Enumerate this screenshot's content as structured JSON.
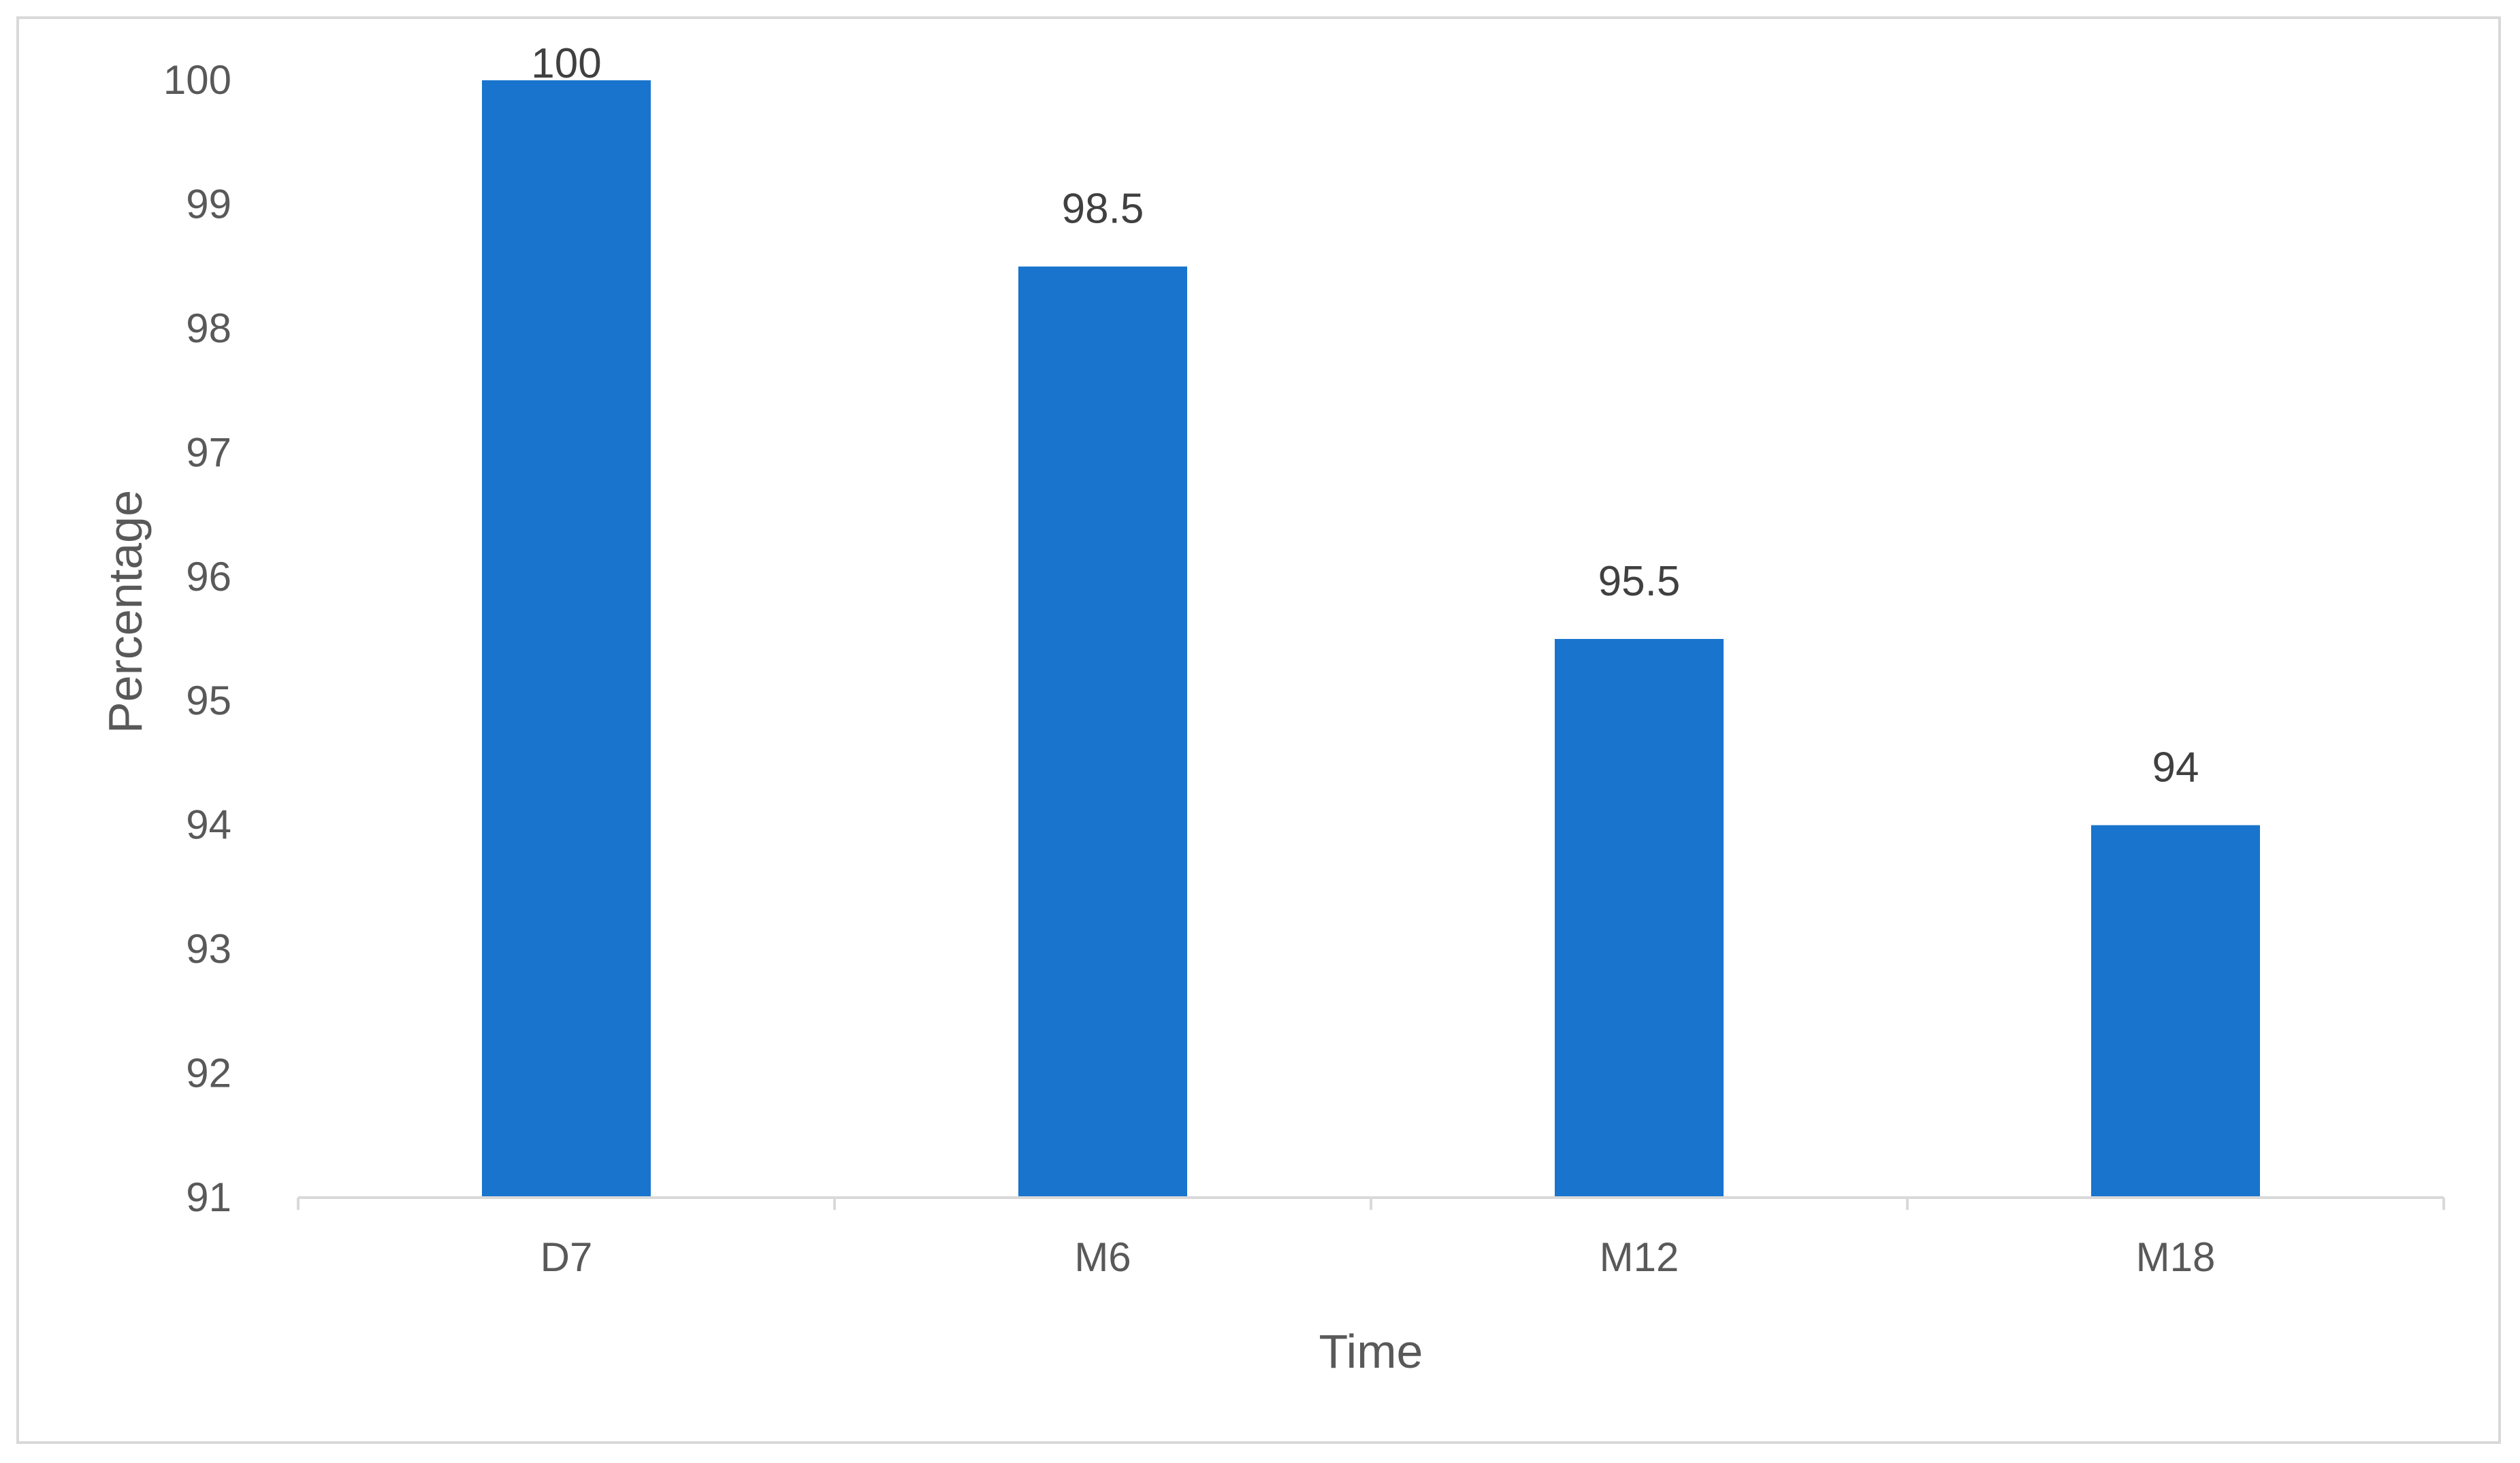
{
  "chart_data": {
    "type": "bar",
    "categories": [
      "D7",
      "M6",
      "M12",
      "M18"
    ],
    "values": [
      100,
      98.5,
      95.5,
      94
    ],
    "data_labels": [
      "100",
      "98.5",
      "95.5",
      "94"
    ],
    "xlabel": "Time",
    "ylabel": "Percentage",
    "ylim": [
      91,
      100
    ],
    "yticks": [
      "91",
      "92",
      "93",
      "94",
      "95",
      "96",
      "97",
      "98",
      "99",
      "100"
    ],
    "grid": false,
    "legend": "none",
    "bar_color": "#1874cd",
    "axis_color": "#d9d9d9",
    "text_color": "#595959"
  }
}
